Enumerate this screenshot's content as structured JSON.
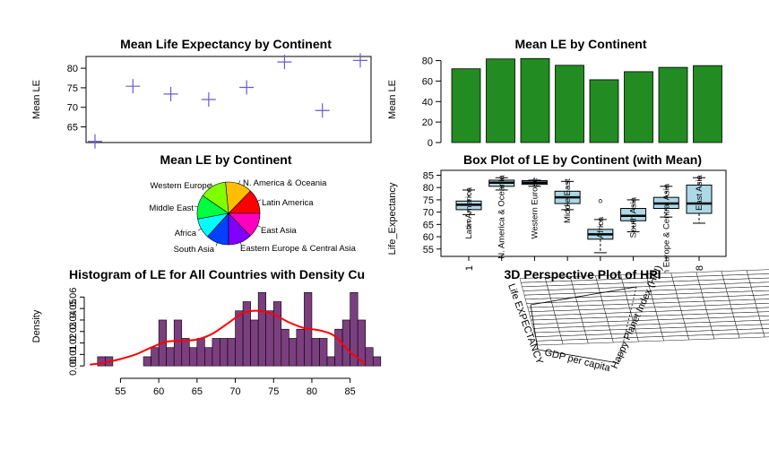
{
  "chart_data": [
    {
      "id": "p1",
      "type": "scatter",
      "title": "Mean Life Expectancy by Continent",
      "xlabel": "",
      "ylabel": "Mean LE",
      "ylim": [
        61,
        83
      ],
      "yticks": [
        65,
        70,
        75,
        80
      ],
      "marker": "plus",
      "color": "#6a5acd",
      "x": [
        1,
        2,
        3,
        4,
        5,
        6,
        7,
        8
      ],
      "values": [
        61.3,
        75.4,
        73.4,
        72.0,
        75.1,
        81.6,
        69.2,
        82.0
      ]
    },
    {
      "id": "p2",
      "type": "bar",
      "title": "Mean LE by Continent",
      "xlabel": "",
      "ylabel": "Mean LE",
      "ylim": [
        0,
        84
      ],
      "yticks": [
        0,
        20,
        40,
        60,
        80
      ],
      "color": "#228b22",
      "values": [
        72.0,
        81.6,
        82.0,
        75.4,
        61.3,
        69.2,
        73.4,
        75.1
      ]
    },
    {
      "id": "p3",
      "type": "pie",
      "title": "Mean LE by Continent",
      "slices": [
        {
          "label": "Latin America",
          "value": 75.1,
          "color": "#ff0000"
        },
        {
          "label": "N. America & Oceania",
          "value": 81.6,
          "color": "#ffbf00"
        },
        {
          "label": "Western Europe",
          "value": 82.0,
          "color": "#80ff00"
        },
        {
          "label": "Middle East",
          "value": 73.4,
          "color": "#00ff40"
        },
        {
          "label": "Africa",
          "value": 61.3,
          "color": "#00ffff"
        },
        {
          "label": "South Asia",
          "value": 69.2,
          "color": "#0040ff"
        },
        {
          "label": "Eastern Europe & Central Asia",
          "value": 72.0,
          "color": "#8000ff"
        },
        {
          "label": "East Asia",
          "value": 75.4,
          "color": "#ff00bf"
        }
      ]
    },
    {
      "id": "p4",
      "type": "box",
      "title": "Box Plot of LE by Continent (with Mean)",
      "xlabel": "",
      "ylabel": "Life_Expectancy",
      "ylim": [
        52,
        87
      ],
      "yticks": [
        55,
        60,
        65,
        70,
        75,
        80,
        85
      ],
      "xticks": [
        "1",
        "8"
      ],
      "color": "#add8e6",
      "categories": [
        "Latin America",
        "N. America & Oceania",
        "Western Europe",
        "Middle East",
        "Africa",
        "South Asia",
        "Eastern Europe & Central Asia",
        "East Asia"
      ],
      "boxes": [
        {
          "min": 69,
          "q1": 71,
          "median": 73,
          "q3": 74.5,
          "max": 79,
          "outliers": [
            64,
            66.5
          ]
        },
        {
          "min": 79,
          "q1": 80.5,
          "median": 82,
          "q3": 83,
          "max": 84,
          "outliers": []
        },
        {
          "min": 80.5,
          "q1": 81.3,
          "median": 82,
          "q3": 82.8,
          "max": 83,
          "outliers": []
        },
        {
          "min": 71,
          "q1": 73.5,
          "median": 76,
          "q3": 78.5,
          "max": 82.5,
          "outliers": []
        },
        {
          "min": 53.5,
          "q1": 59,
          "median": 61,
          "q3": 63,
          "max": 67,
          "outliers": [
            74.5
          ]
        },
        {
          "min": 62,
          "q1": 66.5,
          "median": 68.5,
          "q3": 71.5,
          "max": 75,
          "outliers": []
        },
        {
          "min": 68,
          "q1": 71.5,
          "median": 73.5,
          "q3": 76,
          "max": 80.5,
          "outliers": []
        },
        {
          "min": 65.5,
          "q1": 69.5,
          "median": 73.5,
          "q3": 81,
          "max": 84,
          "outliers": []
        }
      ]
    },
    {
      "id": "p5",
      "type": "histogram",
      "title": "Histogram of LE for All Countries with Density Cu",
      "xlabel": "",
      "ylabel": "Density",
      "xlim": [
        50.5,
        87.5
      ],
      "ylim": [
        -0.003,
        0.072
      ],
      "xticks": [
        55,
        60,
        65,
        70,
        75,
        80,
        85
      ],
      "yticks": [
        0.0,
        0.01,
        0.02,
        0.03,
        0.04,
        0.05,
        0.06
      ],
      "yticklabels": [
        "0.00",
        "0.01",
        "0.02",
        "0.03",
        "0.04",
        "0.05",
        "0.06"
      ],
      "bar_color": "#7b3f7f",
      "line_color": "#ff0000",
      "bin_start": 52,
      "bin_width": 1,
      "values": [
        0.008,
        0.008,
        0,
        0,
        0,
        0,
        0.008,
        0.016,
        0.04,
        0.016,
        0.04,
        0.024,
        0.016,
        0.024,
        0.016,
        0.024,
        0.024,
        0.024,
        0.048,
        0.056,
        0.04,
        0.064,
        0.048,
        0.056,
        0.032,
        0.024,
        0.032,
        0.064,
        0.024,
        0.024,
        0.008,
        0.032,
        0.04,
        0.064,
        0.04,
        0.016,
        0.008
      ],
      "density_x": [
        51,
        53,
        55,
        57,
        59,
        61,
        63,
        65,
        67,
        69,
        71,
        73,
        75,
        77,
        79,
        81,
        83,
        85,
        87
      ],
      "density_y": [
        0.001,
        0.003,
        0.006,
        0.01,
        0.016,
        0.021,
        0.022,
        0.023,
        0.028,
        0.037,
        0.046,
        0.048,
        0.045,
        0.038,
        0.033,
        0.031,
        0.026,
        0.012,
        0.002
      ]
    },
    {
      "id": "p6",
      "type": "surface",
      "title": "3D Perspective Plot of HPI",
      "axis_labels": [
        "Life EXPECTANCY",
        "GDP per capita",
        "Happy Planet Index (HPI)"
      ]
    }
  ]
}
